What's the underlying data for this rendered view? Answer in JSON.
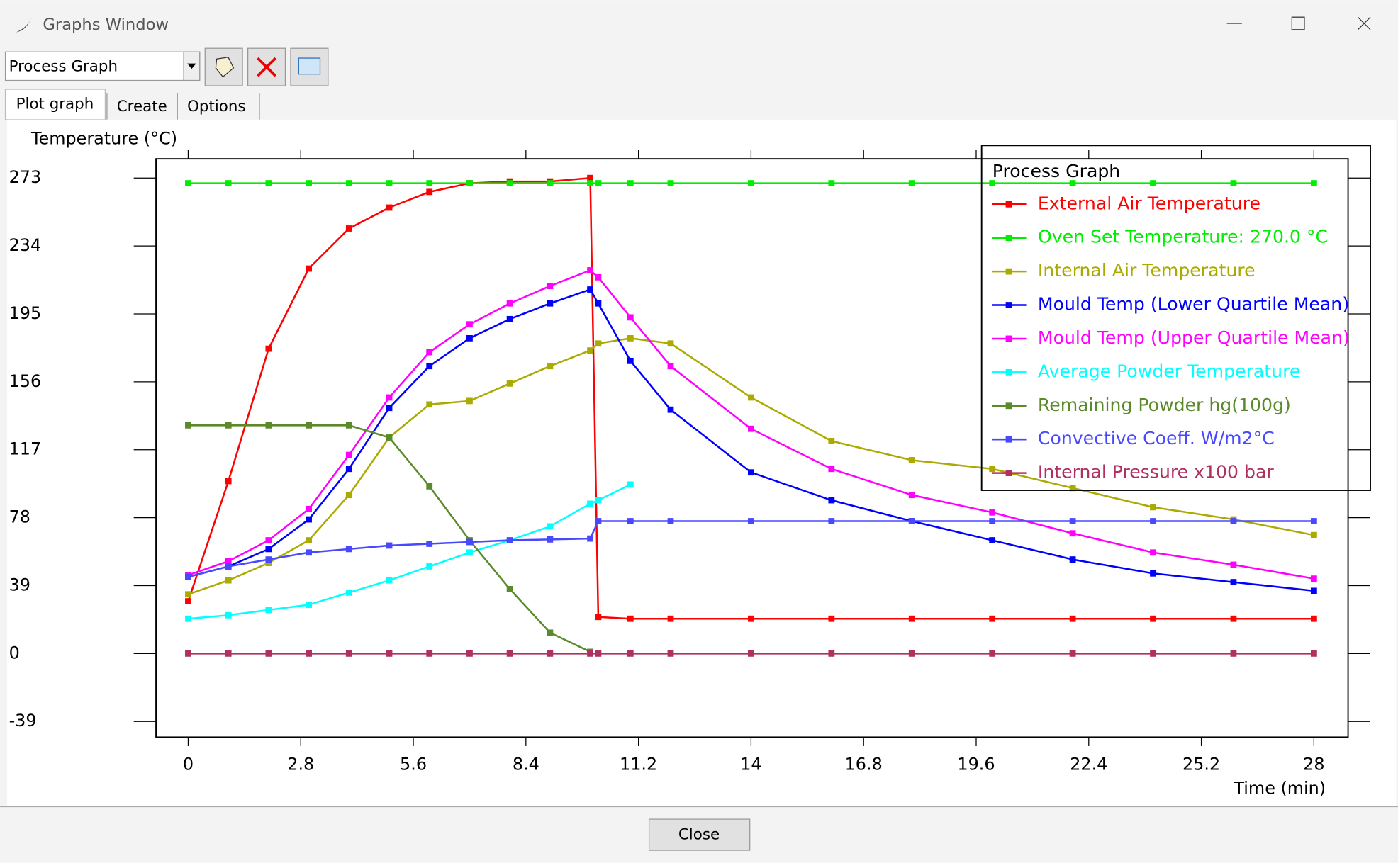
{
  "window": {
    "title": "Graphs Window"
  },
  "toolbar": {
    "graph_select": "Process Graph"
  },
  "tabs": [
    "Plot graph",
    "Create",
    "Options"
  ],
  "chart_data": {
    "type": "line",
    "y_label": "Temperature (°C)",
    "x_label": "Time (min)",
    "legend_title": "Process Graph",
    "legend": "upper right",
    "x": [
      0,
      1,
      2,
      3,
      4,
      5,
      6,
      7,
      8,
      9,
      10,
      10.2,
      11,
      12,
      14,
      16,
      18,
      20,
      22,
      24,
      26,
      28
    ],
    "xlim": [
      -0.8,
      28.85
    ],
    "xticks": [
      0,
      2.8,
      5.6,
      8.4,
      11.2,
      14,
      16.8,
      19.6,
      22.4,
      25.2,
      28
    ],
    "ylim": [
      -48,
      284
    ],
    "yticks": [
      273,
      234,
      195,
      156,
      117,
      78,
      39,
      0,
      -39
    ],
    "series": [
      {
        "name": "External Air Temperature",
        "color": "#ff0000",
        "values": [
          30,
          99,
          175,
          221,
          244,
          256,
          265,
          270,
          271,
          271,
          273,
          21,
          20,
          20,
          20,
          20,
          20,
          20,
          20,
          20,
          20,
          20
        ]
      },
      {
        "name": "Oven Set Temperature: 270.0 °C",
        "color": "#00ee00",
        "values": [
          270,
          270,
          270,
          270,
          270,
          270,
          270,
          270,
          270,
          270,
          270,
          270,
          270,
          270,
          270,
          270,
          270,
          270,
          270,
          270,
          270,
          270
        ]
      },
      {
        "name": "Internal Air Temperature",
        "color": "#aaaa00",
        "values": [
          34,
          42,
          52,
          65,
          91,
          124,
          143,
          145,
          155,
          165,
          174,
          178,
          181,
          178,
          147,
          122,
          111,
          106,
          95,
          84,
          77,
          68
        ]
      },
      {
        "name": "Mould Temp (Lower Quartile Mean)",
        "color": "#0000ff",
        "values": [
          44,
          50,
          60,
          77,
          106,
          141,
          165,
          181,
          192,
          201,
          209,
          201,
          168,
          140,
          104,
          88,
          76,
          65,
          54,
          46,
          41,
          36
        ]
      },
      {
        "name": "Mould Temp (Upper Quartile Mean)",
        "color": "#ff00ff",
        "values": [
          45,
          53,
          65,
          83,
          114,
          147,
          173,
          189,
          201,
          211,
          220,
          216,
          193,
          165,
          129,
          106,
          91,
          81,
          69,
          58,
          51,
          43
        ]
      },
      {
        "name": "Average Powder Temperature",
        "color": "#00ffff",
        "values": [
          20,
          22,
          25,
          28,
          35,
          42,
          50,
          58,
          65,
          73,
          86,
          88,
          97,
          null,
          null,
          null,
          null,
          null,
          null,
          null,
          null,
          null
        ]
      },
      {
        "name": "Remaining Powder hg(100g)",
        "color": "#5a8a2a",
        "values": [
          131,
          131,
          131,
          131,
          131,
          124,
          96,
          65,
          37,
          12,
          1,
          null,
          null,
          null,
          null,
          null,
          null,
          null,
          null,
          null,
          null,
          null
        ]
      },
      {
        "name": "Convective Coeff. W/m2°C",
        "color": "#4848ff",
        "values": [
          44,
          50,
          54,
          58,
          60,
          62,
          63,
          64,
          65,
          65.5,
          66,
          76,
          76,
          76,
          76,
          76,
          76,
          76,
          76,
          76,
          76,
          76
        ]
      },
      {
        "name": "Internal Pressure x100 bar",
        "color": "#b03060",
        "values": [
          0,
          0,
          0,
          0,
          0,
          0,
          0,
          0,
          0,
          0,
          0,
          0,
          0,
          0,
          0,
          0,
          0,
          0,
          0,
          0,
          0,
          0
        ]
      }
    ]
  },
  "footer": {
    "close": "Close"
  }
}
